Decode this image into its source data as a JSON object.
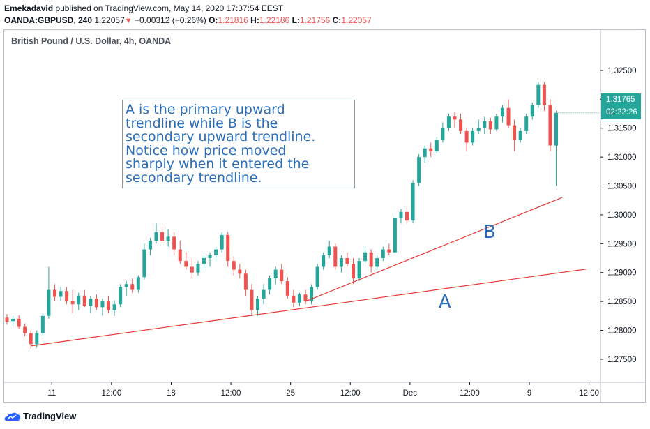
{
  "header": {
    "publisher": "Emekadavid",
    "published_text": "published on TradingView.com, May 14, 2020 17:37:54 EEST",
    "symbol": "OANDA:GBPUSD, 240",
    "last": "1.22057",
    "change_arrow": "▼",
    "change": "−0.00312 (−0.26%)",
    "o_label": "O:",
    "o_value": "1.21816",
    "h_label": "H:",
    "h_value": "1.22186",
    "l_label": "L:",
    "l_value": "1.21756",
    "c_label": "C:",
    "c_value": "1.22057"
  },
  "chart_title": "British Pound / U.S. Dollar, 4h, OANDA",
  "annotation_lines": [
    "A is the primary upward",
    "trendline while B is the",
    "secondary upward trendline.",
    "Notice how price moved",
    "sharply when it entered the",
    "secondary trendline."
  ],
  "label_a": "A",
  "label_b": "B",
  "price_badge": {
    "price": "1.31765",
    "countdown": "02:22:26",
    "color": "#26a69a"
  },
  "footer": {
    "brand": "TradingView"
  },
  "colors": {
    "up": "#26a69a",
    "down": "#ef5350",
    "trendline": "#e53935",
    "annotation": "#2a6ebb"
  },
  "chart_data": {
    "type": "candlestick",
    "title": "British Pound / U.S. Dollar, 4h, OANDA",
    "ylim": [
      1.271,
      1.332
    ],
    "y_ticks": [
      "1.32500",
      "1.32000",
      "1.31500",
      "1.31000",
      "1.30500",
      "1.30000",
      "1.29500",
      "1.29000",
      "1.28500",
      "1.28000",
      "1.27500"
    ],
    "y_tick_values": [
      1.325,
      1.32,
      1.315,
      1.31,
      1.305,
      1.3,
      1.295,
      1.29,
      1.285,
      1.28,
      1.275
    ],
    "x_ticks": [
      "11",
      "12:00",
      "18",
      "12:00",
      "25",
      "12:00",
      "Dec",
      "12:00",
      "9",
      "12:00"
    ],
    "x_tick_index": [
      4,
      14,
      24,
      34,
      44,
      54,
      64,
      74,
      84,
      94
    ],
    "candles": [
      [
        1.2822,
        1.2828,
        1.281,
        1.2815
      ],
      [
        1.2816,
        1.2825,
        1.2808,
        1.282
      ],
      [
        1.282,
        1.2826,
        1.2802,
        1.2806
      ],
      [
        1.2806,
        1.2812,
        1.279,
        1.2795
      ],
      [
        1.2795,
        1.28,
        1.2768,
        1.2776
      ],
      [
        1.2776,
        1.28,
        1.277,
        1.2795
      ],
      [
        1.2795,
        1.283,
        1.279,
        1.2825
      ],
      [
        1.2825,
        1.291,
        1.282,
        1.287
      ],
      [
        1.287,
        1.288,
        1.285,
        1.2858
      ],
      [
        1.2858,
        1.2875,
        1.285,
        1.2868
      ],
      [
        1.2868,
        1.2875,
        1.2845,
        1.285
      ],
      [
        1.285,
        1.287,
        1.283,
        1.2845
      ],
      [
        1.2845,
        1.2865,
        1.2835,
        1.286
      ],
      [
        1.286,
        1.287,
        1.284,
        1.2842
      ],
      [
        1.2842,
        1.286,
        1.283,
        1.2855
      ],
      [
        1.2855,
        1.2862,
        1.2835,
        1.284
      ],
      [
        1.284,
        1.2855,
        1.2825,
        1.285
      ],
      [
        1.285,
        1.286,
        1.283,
        1.2835
      ],
      [
        1.2835,
        1.2852,
        1.2825,
        1.2845
      ],
      [
        1.2845,
        1.288,
        1.284,
        1.2875
      ],
      [
        1.2875,
        1.2885,
        1.286,
        1.288
      ],
      [
        1.288,
        1.289,
        1.2865,
        1.287
      ],
      [
        1.287,
        1.2895,
        1.2865,
        1.2892
      ],
      [
        1.2892,
        1.295,
        1.2888,
        1.294
      ],
      [
        1.294,
        1.296,
        1.293,
        1.2955
      ],
      [
        1.2955,
        1.2985,
        1.295,
        1.297
      ],
      [
        1.297,
        1.298,
        1.295,
        1.2955
      ],
      [
        1.2955,
        1.2975,
        1.2945,
        1.2962
      ],
      [
        1.2962,
        1.297,
        1.293,
        1.294
      ],
      [
        1.294,
        1.2955,
        1.2915,
        1.292
      ],
      [
        1.292,
        1.2935,
        1.2905,
        1.291
      ],
      [
        1.291,
        1.2925,
        1.289,
        1.29
      ],
      [
        1.29,
        1.292,
        1.2895,
        1.2915
      ],
      [
        1.2915,
        1.293,
        1.2905,
        1.2925
      ],
      [
        1.2925,
        1.2935,
        1.291,
        1.293
      ],
      [
        1.293,
        1.2945,
        1.292,
        1.294
      ],
      [
        1.294,
        1.297,
        1.2935,
        1.2965
      ],
      [
        1.2965,
        1.297,
        1.291,
        1.292
      ],
      [
        1.292,
        1.2928,
        1.2895,
        1.2905
      ],
      [
        1.2905,
        1.2915,
        1.289,
        1.2898
      ],
      [
        1.2898,
        1.2905,
        1.286,
        1.287
      ],
      [
        1.287,
        1.288,
        1.2825,
        1.2835
      ],
      [
        1.2835,
        1.286,
        1.2825,
        1.2855
      ],
      [
        1.2855,
        1.288,
        1.2845,
        1.287
      ],
      [
        1.287,
        1.2895,
        1.2862,
        1.289
      ],
      [
        1.289,
        1.291,
        1.288,
        1.2905
      ],
      [
        1.2905,
        1.2915,
        1.288,
        1.2885
      ],
      [
        1.2885,
        1.2892,
        1.2855,
        1.286
      ],
      [
        1.286,
        1.287,
        1.284,
        1.2848
      ],
      [
        1.2848,
        1.2865,
        1.2842,
        1.2862
      ],
      [
        1.2862,
        1.287,
        1.2845,
        1.285
      ],
      [
        1.285,
        1.288,
        1.2845,
        1.2875
      ],
      [
        1.2875,
        1.2915,
        1.287,
        1.291
      ],
      [
        1.291,
        1.2935,
        1.2905,
        1.293
      ],
      [
        1.293,
        1.2955,
        1.2925,
        1.2945
      ],
      [
        1.2945,
        1.295,
        1.2905,
        1.291
      ],
      [
        1.291,
        1.293,
        1.29,
        1.2925
      ],
      [
        1.2925,
        1.2935,
        1.291,
        1.2915
      ],
      [
        1.2915,
        1.2925,
        1.288,
        1.289
      ],
      [
        1.289,
        1.2925,
        1.2885,
        1.292
      ],
      [
        1.292,
        1.2945,
        1.2915,
        1.2935
      ],
      [
        1.2935,
        1.294,
        1.29,
        1.291
      ],
      [
        1.291,
        1.293,
        1.2905,
        1.2925
      ],
      [
        1.2925,
        1.2945,
        1.292,
        1.294
      ],
      [
        1.294,
        1.295,
        1.293,
        1.2935
      ],
      [
        1.2935,
        1.2998,
        1.2932,
        1.2995
      ],
      [
        1.2995,
        1.301,
        1.2985,
        1.3005
      ],
      [
        1.3005,
        1.3012,
        1.2985,
        1.299
      ],
      [
        1.299,
        1.306,
        1.2985,
        1.3055
      ],
      [
        1.3055,
        1.3105,
        1.305,
        1.31
      ],
      [
        1.31,
        1.312,
        1.309,
        1.3115
      ],
      [
        1.3115,
        1.3125,
        1.31,
        1.311
      ],
      [
        1.311,
        1.3135,
        1.3105,
        1.313
      ],
      [
        1.313,
        1.316,
        1.3125,
        1.315
      ],
      [
        1.315,
        1.3175,
        1.3145,
        1.317
      ],
      [
        1.317,
        1.3178,
        1.315,
        1.3165
      ],
      [
        1.3165,
        1.3175,
        1.314,
        1.3145
      ],
      [
        1.3145,
        1.315,
        1.311,
        1.3125
      ],
      [
        1.3125,
        1.315,
        1.312,
        1.3145
      ],
      [
        1.3145,
        1.3165,
        1.314,
        1.315
      ],
      [
        1.315,
        1.317,
        1.314,
        1.3162
      ],
      [
        1.3162,
        1.3168,
        1.314,
        1.3148
      ],
      [
        1.3148,
        1.3175,
        1.3145,
        1.317
      ],
      [
        1.317,
        1.319,
        1.316,
        1.3185
      ],
      [
        1.3185,
        1.32,
        1.315,
        1.3155
      ],
      [
        1.3155,
        1.3165,
        1.311,
        1.313
      ],
      [
        1.313,
        1.315,
        1.3125,
        1.3145
      ],
      [
        1.3145,
        1.3175,
        1.314,
        1.317
      ],
      [
        1.317,
        1.3195,
        1.3165,
        1.319
      ],
      [
        1.319,
        1.323,
        1.3185,
        1.3225
      ],
      [
        1.3225,
        1.323,
        1.318,
        1.319
      ],
      [
        1.319,
        1.32,
        1.311,
        1.312
      ],
      [
        1.312,
        1.318,
        1.305,
        1.31765
      ]
    ],
    "trendlines": [
      {
        "name": "A",
        "from": [
          4,
          1.2773
        ],
        "to": [
          97,
          1.2906
        ]
      },
      {
        "name": "B",
        "from": [
          50,
          1.285
        ],
        "to": [
          93,
          1.303
        ]
      }
    ]
  }
}
